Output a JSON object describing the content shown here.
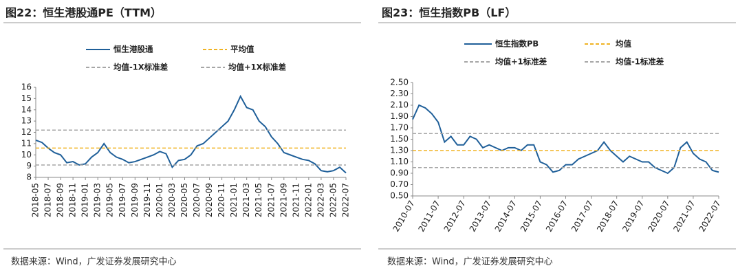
{
  "chart_data": [
    {
      "type": "line",
      "title": "图22：恒生港股通PE（TTM）",
      "source": "数据来源：Wind，广发证券发展研究中心",
      "categories": [
        "2018-05",
        null,
        "2018-07",
        null,
        "2018-09",
        null,
        "2018-11",
        null,
        "2019-01",
        null,
        "2019-03",
        null,
        "2019-05",
        null,
        "2019-07",
        null,
        "2019-09",
        null,
        "2019-11",
        null,
        "2020-01",
        null,
        "2020-03",
        null,
        "2020-05",
        null,
        "2020-07",
        null,
        "2020-09",
        null,
        "2020-11",
        null,
        "2021-01",
        null,
        "2021-03",
        null,
        "2021-05",
        null,
        "2021-07",
        null,
        "2021-09",
        null,
        "2021-11",
        null,
        "2022-01",
        null,
        "2022-03",
        null,
        "2022-05",
        null,
        "2022-07"
      ],
      "series": [
        {
          "name": "恒生港股通",
          "color": "#1f5f99",
          "values": [
            11.3,
            11.1,
            10.6,
            10.2,
            10.0,
            9.3,
            9.4,
            9.1,
            9.2,
            9.8,
            10.2,
            11.0,
            10.2,
            9.8,
            9.6,
            9.3,
            9.4,
            9.6,
            9.8,
            10.0,
            10.3,
            10.1,
            8.9,
            9.5,
            9.6,
            10.0,
            10.8,
            11.0,
            11.5,
            12.0,
            12.5,
            13.0,
            14.0,
            15.2,
            14.2,
            14.0,
            13.0,
            12.5,
            11.6,
            11.0,
            10.2,
            10.0,
            9.8,
            9.6,
            9.5,
            9.2,
            8.6,
            8.5,
            8.6,
            8.9,
            8.4
          ]
        },
        {
          "name": "平均值",
          "color": "#f0b323",
          "value": 10.6
        },
        {
          "name": "均值-1X标准差",
          "color": "#a6a6a6",
          "value": 9.1
        },
        {
          "name": "均值+1X标准差",
          "color": "#a6a6a6",
          "value": 12.2
        }
      ],
      "ylim": [
        8,
        16
      ],
      "yticks": [
        8,
        9,
        10,
        11,
        12,
        13,
        14,
        15,
        16
      ]
    },
    {
      "type": "line",
      "title": "图23：恒生指数PB（LF）",
      "source": "数据来源：Wind，广发证券发展研究中心",
      "categories": [
        "2010-07",
        null,
        null,
        null,
        "2011-07",
        null,
        null,
        null,
        "2012-07",
        null,
        null,
        null,
        "2013-07",
        null,
        null,
        null,
        "2014-07",
        null,
        null,
        null,
        "2015-07",
        null,
        null,
        null,
        "2016-07",
        null,
        null,
        null,
        "2017-07",
        null,
        null,
        null,
        "2018-07",
        null,
        null,
        null,
        "2019-07",
        null,
        null,
        null,
        "2020-07",
        null,
        null,
        null,
        "2021-07",
        null,
        null,
        null,
        "2022-07"
      ],
      "series": [
        {
          "name": "恒生指数PB",
          "color": "#1f5f99",
          "values": [
            1.85,
            2.1,
            2.05,
            1.95,
            1.8,
            1.45,
            1.55,
            1.4,
            1.4,
            1.55,
            1.5,
            1.35,
            1.4,
            1.35,
            1.3,
            1.35,
            1.35,
            1.3,
            1.4,
            1.4,
            1.1,
            1.05,
            0.92,
            0.95,
            1.05,
            1.05,
            1.15,
            1.2,
            1.25,
            1.3,
            1.45,
            1.3,
            1.2,
            1.1,
            1.2,
            1.15,
            1.1,
            1.1,
            1.0,
            0.95,
            0.9,
            1.0,
            1.35,
            1.45,
            1.25,
            1.15,
            1.1,
            0.95,
            0.92
          ]
        },
        {
          "name": "均值",
          "color": "#f0b323",
          "value": 1.3
        },
        {
          "name": "均值+1标准差",
          "color": "#a6a6a6",
          "value": 1.6
        },
        {
          "name": "均值-1标准差",
          "color": "#a6a6a6",
          "value": 1.0
        }
      ],
      "ylim": [
        0.5,
        2.5
      ],
      "yticks": [
        {
          "value": 0.5,
          "label": "0.50"
        },
        {
          "value": 0.7,
          "label": "0.70"
        },
        {
          "value": 0.9,
          "label": "0.90"
        },
        {
          "value": 1.1,
          "label": "1.10"
        },
        {
          "value": 1.3,
          "label": "1.30"
        },
        {
          "value": 1.5,
          "label": "1.50"
        },
        {
          "value": 1.7,
          "label": "1.70"
        },
        {
          "value": 1.9,
          "label": "1.90"
        },
        {
          "value": 2.1,
          "label": "2.10"
        },
        {
          "value": 2.3,
          "label": "2.30"
        },
        {
          "value": 2.5,
          "label": "2.50"
        }
      ]
    }
  ]
}
